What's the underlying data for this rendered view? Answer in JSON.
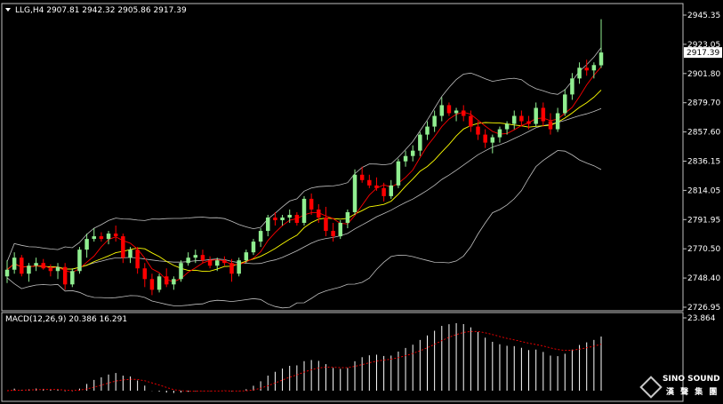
{
  "header": {
    "symbol": "LLG,H4",
    "ohlc": "2907.81 2942.32 2905.86 2917.39"
  },
  "price_axis": {
    "ticks": [
      "2945.35",
      "2923.05",
      "2901.80",
      "2879.70",
      "2857.60",
      "2836.15",
      "2814.05",
      "2791.95",
      "2770.50",
      "2748.40",
      "2726.95"
    ],
    "current_price": "2917.39"
  },
  "macd_panel": {
    "label": "MACD(12,26,9) 20.386 16.291",
    "axis_top": "23.864"
  },
  "logo": {
    "brand": "SINO SOUND",
    "sub": "漢 聲 集 團"
  },
  "colors": {
    "background": "#000000",
    "bull": "#90ee90",
    "bear": "#ff0000",
    "bands": "#c0c0c0",
    "ma_fast": "#ff0000",
    "ma_slow": "#ffff00",
    "macd_hist": "#ffffff",
    "macd_signal": "#ff0000",
    "panel_border": "#c0c0c0"
  },
  "chart_data": {
    "type": "candlestick",
    "symbol": "LLG",
    "timeframe": "H4",
    "y_range": [
      2726.95,
      2945.35
    ],
    "ohlc": [
      [
        2750,
        2762,
        2745,
        2755
      ],
      [
        2755,
        2768,
        2752,
        2764
      ],
      [
        2764,
        2766,
        2750,
        2752
      ],
      [
        2752,
        2760,
        2746,
        2758
      ],
      [
        2758,
        2764,
        2754,
        2760
      ],
      [
        2760,
        2763,
        2755,
        2756
      ],
      [
        2756,
        2759,
        2750,
        2754
      ],
      [
        2754,
        2760,
        2748,
        2757
      ],
      [
        2757,
        2760,
        2740,
        2744
      ],
      [
        2744,
        2756,
        2742,
        2754
      ],
      [
        2754,
        2772,
        2752,
        2770
      ],
      [
        2770,
        2782,
        2764,
        2778
      ],
      [
        2778,
        2786,
        2776,
        2780
      ],
      [
        2780,
        2783,
        2776,
        2778
      ],
      [
        2778,
        2784,
        2774,
        2782
      ],
      [
        2782,
        2788,
        2776,
        2780
      ],
      [
        2780,
        2782,
        2760,
        2764
      ],
      [
        2764,
        2772,
        2760,
        2770
      ],
      [
        2770,
        2772,
        2752,
        2756
      ],
      [
        2756,
        2760,
        2742,
        2748
      ],
      [
        2748,
        2752,
        2736,
        2740
      ],
      [
        2740,
        2752,
        2738,
        2750
      ],
      [
        2750,
        2756,
        2742,
        2744
      ],
      [
        2744,
        2750,
        2740,
        2748
      ],
      [
        2748,
        2762,
        2746,
        2760
      ],
      [
        2760,
        2768,
        2758,
        2764
      ],
      [
        2764,
        2770,
        2760,
        2766
      ],
      [
        2766,
        2770,
        2760,
        2762
      ],
      [
        2762,
        2765,
        2756,
        2758
      ],
      [
        2758,
        2764,
        2754,
        2762
      ],
      [
        2762,
        2765,
        2758,
        2760
      ],
      [
        2760,
        2763,
        2746,
        2752
      ],
      [
        2752,
        2764,
        2750,
        2762
      ],
      [
        2762,
        2770,
        2760,
        2768
      ],
      [
        2768,
        2778,
        2766,
        2776
      ],
      [
        2776,
        2786,
        2772,
        2784
      ],
      [
        2784,
        2796,
        2780,
        2794
      ],
      [
        2794,
        2798,
        2788,
        2792
      ],
      [
        2792,
        2796,
        2788,
        2794
      ],
      [
        2794,
        2800,
        2790,
        2796
      ],
      [
        2796,
        2798,
        2788,
        2790
      ],
      [
        2790,
        2810,
        2788,
        2808
      ],
      [
        2808,
        2812,
        2796,
        2800
      ],
      [
        2800,
        2804,
        2790,
        2794
      ],
      [
        2794,
        2802,
        2780,
        2784
      ],
      [
        2784,
        2790,
        2776,
        2780
      ],
      [
        2780,
        2792,
        2778,
        2790
      ],
      [
        2790,
        2800,
        2786,
        2798
      ],
      [
        2798,
        2830,
        2796,
        2826
      ],
      [
        2826,
        2832,
        2820,
        2822
      ],
      [
        2822,
        2826,
        2816,
        2818
      ],
      [
        2818,
        2824,
        2814,
        2816
      ],
      [
        2816,
        2820,
        2806,
        2810
      ],
      [
        2810,
        2822,
        2808,
        2818
      ],
      [
        2818,
        2838,
        2816,
        2836
      ],
      [
        2836,
        2844,
        2832,
        2840
      ],
      [
        2840,
        2848,
        2836,
        2844
      ],
      [
        2844,
        2858,
        2840,
        2856
      ],
      [
        2856,
        2866,
        2852,
        2862
      ],
      [
        2862,
        2874,
        2858,
        2870
      ],
      [
        2870,
        2884,
        2866,
        2878
      ],
      [
        2878,
        2880,
        2870,
        2872
      ],
      [
        2872,
        2876,
        2866,
        2874
      ],
      [
        2874,
        2878,
        2866,
        2870
      ],
      [
        2870,
        2874,
        2858,
        2862
      ],
      [
        2862,
        2866,
        2852,
        2856
      ],
      [
        2856,
        2860,
        2846,
        2850
      ],
      [
        2850,
        2856,
        2842,
        2854
      ],
      [
        2854,
        2862,
        2850,
        2860
      ],
      [
        2860,
        2866,
        2856,
        2864
      ],
      [
        2864,
        2874,
        2860,
        2870
      ],
      [
        2870,
        2874,
        2862,
        2866
      ],
      [
        2866,
        2870,
        2860,
        2864
      ],
      [
        2864,
        2880,
        2862,
        2876
      ],
      [
        2876,
        2880,
        2862,
        2866
      ],
      [
        2866,
        2872,
        2856,
        2860
      ],
      [
        2860,
        2876,
        2858,
        2872
      ],
      [
        2872,
        2890,
        2870,
        2886
      ],
      [
        2886,
        2902,
        2882,
        2898
      ],
      [
        2898,
        2910,
        2894,
        2906
      ],
      [
        2906,
        2912,
        2900,
        2904
      ],
      [
        2904,
        2910,
        2898,
        2908
      ],
      [
        2907.81,
        2942.32,
        2905.86,
        2917.39
      ]
    ],
    "macd": {
      "name": "MACD(12,26,9)",
      "main_last": 20.386,
      "signal_last": 16.291,
      "axis_max": 23.864
    }
  }
}
